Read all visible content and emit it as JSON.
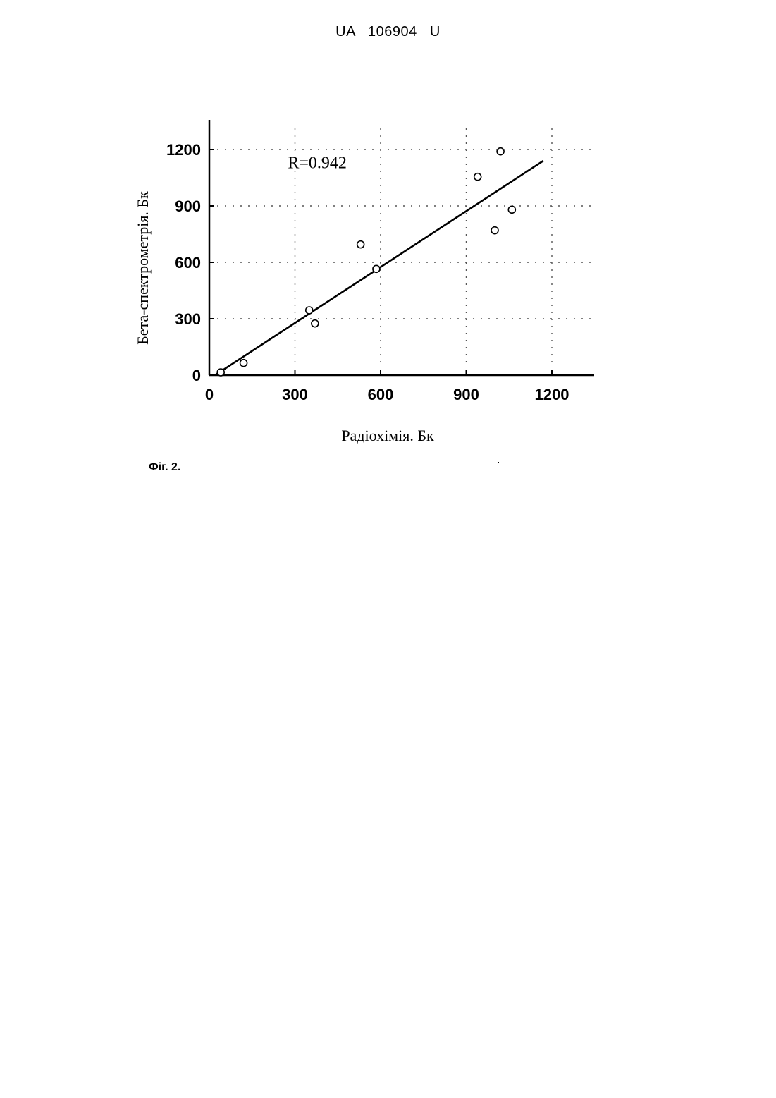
{
  "header": {
    "doc_number": "UA   106904   U"
  },
  "figure": {
    "caption": "Фіг. 2."
  },
  "chart_data": {
    "type": "scatter",
    "title": "",
    "xlabel": "Радіохімія. Бк",
    "ylabel": "Бета-спектрометрія. Бк",
    "xlim": [
      0,
      1350
    ],
    "ylim": [
      0,
      1350
    ],
    "x_ticks": [
      0,
      300,
      600,
      900,
      1200
    ],
    "y_ticks": [
      0,
      300,
      600,
      900,
      1200
    ],
    "x_tick_labels": [
      "0",
      "300",
      "600",
      "900",
      "1200"
    ],
    "y_tick_labels": [
      "0",
      "300",
      "600",
      "900",
      "1200"
    ],
    "grid": true,
    "annotation": "R=0.942",
    "points": [
      {
        "x": 40,
        "y": 15
      },
      {
        "x": 120,
        "y": 65
      },
      {
        "x": 350,
        "y": 345
      },
      {
        "x": 370,
        "y": 275
      },
      {
        "x": 530,
        "y": 695
      },
      {
        "x": 585,
        "y": 565
      },
      {
        "x": 940,
        "y": 1055
      },
      {
        "x": 1000,
        "y": 770
      },
      {
        "x": 1020,
        "y": 1190
      },
      {
        "x": 1060,
        "y": 880
      }
    ],
    "fit_line": {
      "x": [
        20,
        1170
      ],
      "y": [
        0,
        1140
      ]
    },
    "colors": {
      "points": "#000000",
      "line": "#000000",
      "grid": "#555555"
    }
  }
}
